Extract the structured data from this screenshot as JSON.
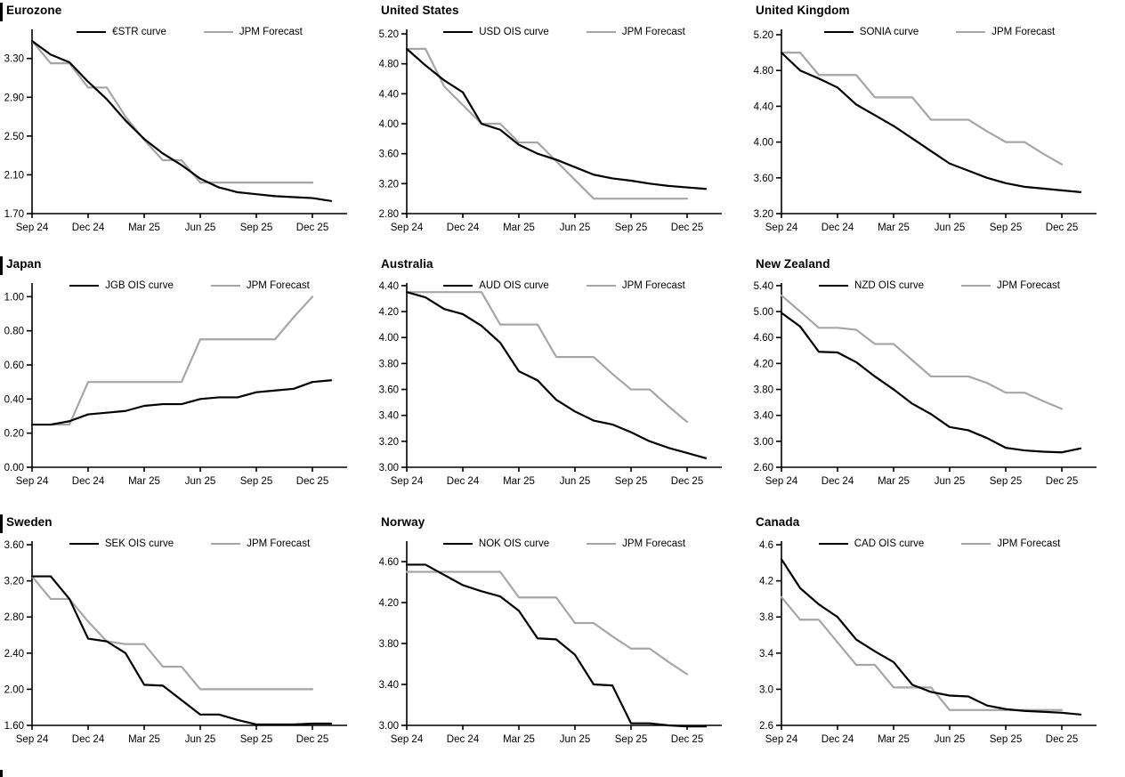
{
  "colors": {
    "market_line": "#000000",
    "forecast_line": "#a6a6a6",
    "axis": "#000000",
    "background": "#ffffff"
  },
  "x_tick_labels": [
    "Sep 24",
    "Dec 24",
    "Mar 25",
    "Jun 25",
    "Sep 25",
    "Dec 25"
  ],
  "chart_data": [
    {
      "type": "line",
      "title": "Eurozone",
      "section_bar": true,
      "x_unit": "months from Sep 2024, one point per month, ticks every 3 months",
      "x_tick_labels": [
        "Sep 24",
        "Dec 24",
        "Mar 25",
        "Jun 25",
        "Sep 25",
        "Dec 25"
      ],
      "ylim": [
        1.7,
        3.6
      ],
      "yticks": [
        "1.70",
        "2.10",
        "2.50",
        "2.90",
        "3.30"
      ],
      "grid": false,
      "legend_position": "top-center",
      "series": [
        {
          "name": "€STR curve",
          "role": "market",
          "color": "#000000",
          "values": [
            3.48,
            3.34,
            3.26,
            3.06,
            2.88,
            2.66,
            2.47,
            2.32,
            2.2,
            2.06,
            1.97,
            1.92,
            1.9,
            1.88,
            1.87,
            1.86,
            1.83
          ]
        },
        {
          "name": "JPM Forecast",
          "role": "forecast",
          "color": "#a6a6a6",
          "values": [
            3.48,
            3.25,
            3.25,
            3.0,
            3.0,
            2.7,
            2.46,
            2.25,
            2.25,
            2.02,
            2.02,
            2.02,
            2.02,
            2.02,
            2.02,
            2.02
          ]
        }
      ]
    },
    {
      "type": "line",
      "title": "United States",
      "section_bar": false,
      "x_unit": "months from Sep 2024, one point per month, ticks every 3 months",
      "x_tick_labels": [
        "Sep 24",
        "Dec 24",
        "Mar 25",
        "Jun 25",
        "Sep 25",
        "Dec 25"
      ],
      "ylim": [
        2.8,
        5.26
      ],
      "yticks": [
        "2.80",
        "3.20",
        "3.60",
        "4.00",
        "4.40",
        "4.80",
        "5.20"
      ],
      "grid": false,
      "legend_position": "top-center",
      "series": [
        {
          "name": "USD OIS curve",
          "role": "market",
          "color": "#000000",
          "values": [
            5.0,
            4.78,
            4.58,
            4.42,
            4.0,
            3.92,
            3.72,
            3.6,
            3.52,
            3.42,
            3.32,
            3.27,
            3.24,
            3.2,
            3.17,
            3.15,
            3.13
          ]
        },
        {
          "name": "JPM Forecast",
          "role": "forecast",
          "color": "#a6a6a6",
          "values": [
            5.0,
            5.0,
            4.5,
            4.25,
            4.0,
            4.0,
            3.75,
            3.75,
            3.5,
            3.25,
            3.0,
            3.0,
            3.0,
            3.0,
            3.0,
            3.0
          ]
        }
      ]
    },
    {
      "type": "line",
      "title": "United Kingdom",
      "section_bar": false,
      "x_unit": "months from Sep 2024, one point per month, ticks every 3 months",
      "x_tick_labels": [
        "Sep 24",
        "Dec 24",
        "Mar 25",
        "Jun 25",
        "Sep 25",
        "Dec 25"
      ],
      "ylim": [
        3.2,
        5.26
      ],
      "yticks": [
        "3.20",
        "3.60",
        "4.00",
        "4.40",
        "4.80",
        "5.20"
      ],
      "grid": false,
      "legend_position": "top-center",
      "series": [
        {
          "name": "SONIA curve",
          "role": "market",
          "color": "#000000",
          "values": [
            5.0,
            4.8,
            4.71,
            4.61,
            4.42,
            4.3,
            4.18,
            4.04,
            3.9,
            3.76,
            3.68,
            3.6,
            3.54,
            3.5,
            3.48,
            3.46,
            3.44
          ]
        },
        {
          "name": "JPM Forecast",
          "role": "forecast",
          "color": "#a6a6a6",
          "values": [
            5.0,
            5.0,
            4.75,
            4.75,
            4.75,
            4.5,
            4.5,
            4.5,
            4.25,
            4.25,
            4.25,
            4.12,
            4.0,
            4.0,
            3.87,
            3.75
          ]
        }
      ]
    },
    {
      "type": "line",
      "title": "Japan",
      "section_bar": true,
      "x_unit": "months from Sep 2024, one point per month, ticks every 3 months",
      "x_tick_labels": [
        "Sep 24",
        "Dec 24",
        "Mar 25",
        "Jun 25",
        "Sep 25",
        "Dec 25"
      ],
      "ylim": [
        0.0,
        1.08
      ],
      "yticks": [
        "0.00",
        "0.20",
        "0.40",
        "0.60",
        "0.80",
        "1.00"
      ],
      "grid": false,
      "legend_position": "top-center",
      "series": [
        {
          "name": "JGB OIS curve",
          "role": "market",
          "color": "#000000",
          "values": [
            0.25,
            0.25,
            0.27,
            0.31,
            0.32,
            0.33,
            0.36,
            0.37,
            0.37,
            0.4,
            0.41,
            0.41,
            0.44,
            0.45,
            0.46,
            0.5,
            0.51
          ]
        },
        {
          "name": "JPM Forecast",
          "role": "forecast",
          "color": "#a6a6a6",
          "values": [
            0.25,
            0.25,
            0.25,
            0.5,
            0.5,
            0.5,
            0.5,
            0.5,
            0.5,
            0.75,
            0.75,
            0.75,
            0.75,
            0.75,
            0.88,
            1.0
          ]
        }
      ]
    },
    {
      "type": "line",
      "title": "Australia",
      "section_bar": false,
      "x_unit": "months from Sep 2024, one point per month, ticks every 3 months",
      "x_tick_labels": [
        "Sep 24",
        "Dec 24",
        "Mar 25",
        "Jun 25",
        "Sep 25",
        "Dec 25"
      ],
      "ylim": [
        3.0,
        4.42
      ],
      "yticks": [
        "3.00",
        "3.20",
        "3.40",
        "3.60",
        "3.80",
        "4.00",
        "4.20",
        "4.40"
      ],
      "grid": false,
      "legend_position": "top-center",
      "series": [
        {
          "name": "AUD OIS curve",
          "role": "market",
          "color": "#000000",
          "values": [
            4.35,
            4.31,
            4.22,
            4.18,
            4.09,
            3.96,
            3.74,
            3.67,
            3.52,
            3.43,
            3.36,
            3.33,
            3.27,
            3.2,
            3.15,
            3.11,
            3.07
          ]
        },
        {
          "name": "JPM Forecast",
          "role": "forecast",
          "color": "#a6a6a6",
          "values": [
            4.35,
            4.35,
            4.35,
            4.35,
            4.35,
            4.1,
            4.1,
            4.1,
            3.85,
            3.85,
            3.85,
            3.72,
            3.6,
            3.6,
            3.47,
            3.35
          ]
        }
      ]
    },
    {
      "type": "line",
      "title": "New Zealand",
      "section_bar": false,
      "x_unit": "months from Sep 2024, one point per month, ticks every 3 months",
      "x_tick_labels": [
        "Sep 24",
        "Dec 24",
        "Mar 25",
        "Jun 25",
        "Sep 25",
        "Dec 25"
      ],
      "ylim": [
        2.6,
        5.44
      ],
      "yticks": [
        "2.60",
        "3.00",
        "3.40",
        "3.80",
        "4.20",
        "4.60",
        "5.00",
        "5.40"
      ],
      "grid": false,
      "legend_position": "top-center",
      "series": [
        {
          "name": "NZD OIS curve",
          "role": "market",
          "color": "#000000",
          "values": [
            4.98,
            4.77,
            4.38,
            4.37,
            4.22,
            4.0,
            3.8,
            3.58,
            3.42,
            3.22,
            3.17,
            3.05,
            2.9,
            2.86,
            2.84,
            2.83,
            2.89
          ]
        },
        {
          "name": "JPM Forecast",
          "role": "forecast",
          "color": "#a6a6a6",
          "values": [
            5.25,
            5.0,
            4.75,
            4.75,
            4.72,
            4.5,
            4.5,
            4.25,
            4.0,
            4.0,
            4.0,
            3.9,
            3.75,
            3.75,
            3.62,
            3.5
          ]
        }
      ]
    },
    {
      "type": "line",
      "title": "Sweden",
      "section_bar": true,
      "x_unit": "months from Sep 2024, one point per month, ticks every 3 months",
      "x_tick_labels": [
        "Sep 24",
        "Dec 24",
        "Mar 25",
        "Jun 25",
        "Sep 25",
        "Dec 25"
      ],
      "ylim": [
        1.6,
        3.64
      ],
      "yticks": [
        "1.60",
        "2.00",
        "2.40",
        "2.80",
        "3.20",
        "3.60"
      ],
      "grid": false,
      "legend_position": "top-center",
      "series": [
        {
          "name": "SEK OIS curve",
          "role": "market",
          "color": "#000000",
          "values": [
            3.25,
            3.25,
            3.0,
            2.56,
            2.53,
            2.4,
            2.05,
            2.04,
            1.88,
            1.72,
            1.72,
            1.66,
            1.61,
            1.61,
            1.61,
            1.62,
            1.62
          ]
        },
        {
          "name": "JPM Forecast",
          "role": "forecast",
          "color": "#a6a6a6",
          "values": [
            3.25,
            3.0,
            3.0,
            2.75,
            2.53,
            2.5,
            2.5,
            2.25,
            2.25,
            2.0,
            2.0,
            2.0,
            2.0,
            2.0,
            2.0,
            2.0
          ]
        }
      ]
    },
    {
      "type": "line",
      "title": "Norway",
      "section_bar": false,
      "x_unit": "months from Sep 2024, one point per month, ticks every 3 months",
      "x_tick_labels": [
        "Sep 24",
        "Dec 24",
        "Mar 25",
        "Jun 25",
        "Sep 25",
        "Dec 25"
      ],
      "ylim": [
        3.0,
        4.8
      ],
      "yticks": [
        "3.00",
        "3.40",
        "3.80",
        "4.20",
        "4.60"
      ],
      "grid": false,
      "legend_position": "top-center",
      "series": [
        {
          "name": "NOK OIS curve",
          "role": "market",
          "color": "#000000",
          "values": [
            4.57,
            4.57,
            4.47,
            4.37,
            4.31,
            4.26,
            4.12,
            3.85,
            3.84,
            3.69,
            3.4,
            3.39,
            3.02,
            3.02,
            3.0,
            2.99,
            2.99
          ]
        },
        {
          "name": "JPM Forecast",
          "role": "forecast",
          "color": "#a6a6a6",
          "values": [
            4.5,
            4.5,
            4.5,
            4.5,
            4.5,
            4.5,
            4.25,
            4.25,
            4.25,
            4.0,
            4.0,
            3.87,
            3.75,
            3.75,
            3.62,
            3.5
          ]
        }
      ]
    },
    {
      "type": "line",
      "title": "Canada",
      "section_bar": false,
      "x_unit": "months from Sep 2024, one point per month, ticks every 3 months",
      "x_tick_labels": [
        "Sep 24",
        "Dec 24",
        "Mar 25",
        "Jun 25",
        "Sep 25",
        "Dec 25"
      ],
      "ylim": [
        2.6,
        4.64
      ],
      "yticks": [
        "2.6",
        "3.0",
        "3.4",
        "3.8",
        "4.2",
        "4.6"
      ],
      "grid": false,
      "legend_position": "top-center",
      "series": [
        {
          "name": "CAD OIS curve",
          "role": "market",
          "color": "#000000",
          "values": [
            4.44,
            4.12,
            3.94,
            3.8,
            3.55,
            3.42,
            3.3,
            3.05,
            2.97,
            2.93,
            2.92,
            2.82,
            2.78,
            2.76,
            2.75,
            2.74,
            2.72
          ]
        },
        {
          "name": "JPM Forecast",
          "role": "forecast",
          "color": "#a6a6a6",
          "values": [
            4.02,
            3.77,
            3.77,
            3.52,
            3.27,
            3.27,
            3.02,
            3.02,
            3.02,
            2.77,
            2.77,
            2.77,
            2.77,
            2.77,
            2.77,
            2.77
          ]
        }
      ]
    }
  ]
}
